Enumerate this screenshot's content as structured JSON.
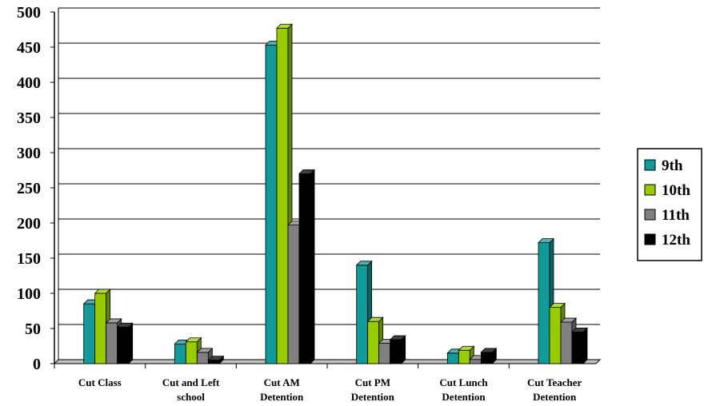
{
  "chart_data": {
    "type": "bar",
    "title": "",
    "xlabel": "",
    "ylabel": "",
    "categories": [
      [
        "Cut Class"
      ],
      [
        "Cut and Left",
        "school"
      ],
      [
        "Cut AM",
        "Detention"
      ],
      [
        "Cut PM",
        "Detention"
      ],
      [
        "Cut Lunch",
        "Detention"
      ],
      [
        "Cut Teacher",
        "Detention"
      ]
    ],
    "series": [
      {
        "name": "9th",
        "color": "#12999a",
        "values": [
          85,
          28,
          453,
          140,
          15,
          172
        ]
      },
      {
        "name": "10th",
        "color": "#99cc00",
        "values": [
          100,
          31,
          477,
          60,
          19,
          80
        ]
      },
      {
        "name": "11th",
        "color": "#808080",
        "values": [
          58,
          16,
          197,
          29,
          6,
          59
        ]
      },
      {
        "name": "12th",
        "color": "#000000",
        "values": [
          52,
          5,
          270,
          34,
          16,
          45
        ]
      }
    ],
    "ylim": [
      0,
      500
    ],
    "yticks": [
      0,
      50,
      100,
      150,
      200,
      250,
      300,
      350,
      400,
      450,
      500
    ],
    "grid": true,
    "legend_position": "right"
  }
}
